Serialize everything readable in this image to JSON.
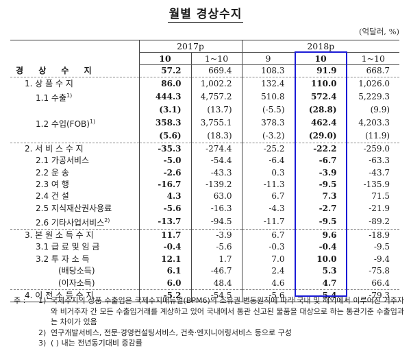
{
  "title": "월별 경상수지",
  "unit": "(억달러, %)",
  "header": {
    "years": [
      {
        "label": "2017p",
        "span": 2
      },
      {
        "label": "2018p",
        "span": 3
      }
    ],
    "months": [
      "10",
      "1~10",
      "9",
      "10",
      "1~10"
    ]
  },
  "highlight": {
    "column_index": 3,
    "color": "#1a1ad6"
  },
  "rows": [
    {
      "label": "경 상 수 지",
      "level": 0,
      "values": [
        "57.2",
        "669.4",
        "108.3",
        "91.9",
        "668.7"
      ]
    },
    {
      "label": "1. 상 품 수 지",
      "level": 1,
      "values": [
        "86.0",
        "1,002.2",
        "132.4",
        "110.0",
        "1,026.0"
      ]
    },
    {
      "label": "1.1  수출",
      "sup": "1)",
      "level": 2,
      "values": [
        "444.3",
        "4,757.2",
        "510.8",
        "572.4",
        "5,229.3"
      ]
    },
    {
      "label": "",
      "level": 2,
      "values": [
        "(3.1)",
        "(13.7)",
        "(-5.5)",
        "(28.8)",
        "(9.9)"
      ]
    },
    {
      "label": "1.2  수입(FOB)",
      "sup": "1)",
      "level": 2,
      "values": [
        "358.3",
        "3,755.1",
        "378.3",
        "462.4",
        "4,203.3"
      ]
    },
    {
      "label": "",
      "level": 2,
      "values": [
        "(5.6)",
        "(18.3)",
        "(-3.2)",
        "(29.0)",
        "(11.9)"
      ]
    },
    {
      "label": "2. 서 비 스 수 지",
      "level": 1,
      "values": [
        "-35.3",
        "-274.4",
        "-25.2",
        "-22.2",
        "-259.0"
      ]
    },
    {
      "label": "2.1  가공서비스",
      "level": 2,
      "values": [
        "-5.0",
        "-54.4",
        "-6.4",
        "-6.7",
        "-63.3"
      ]
    },
    {
      "label": "2.2  운          송",
      "level": 2,
      "values": [
        "-2.6",
        "-43.3",
        "0.3",
        "-3.9",
        "-43.7"
      ]
    },
    {
      "label": "2.3  여          행",
      "level": 2,
      "values": [
        "-16.7",
        "-139.2",
        "-11.3",
        "-9.5",
        "-135.9"
      ]
    },
    {
      "label": "2.4  건          설",
      "level": 2,
      "values": [
        "4.3",
        "63.0",
        "6.7",
        "7.3",
        "71.5"
      ]
    },
    {
      "label": "2.5  지식재산권사용료",
      "level": 2,
      "values": [
        "-5.6",
        "-16.3",
        "-4.3",
        "-2.7",
        "-21.9"
      ]
    },
    {
      "label": "2.6  기타사업서비스",
      "sup": "2)",
      "level": 2,
      "values": [
        "-13.7",
        "-94.5",
        "-11.7",
        "-9.5",
        "-89.2"
      ]
    },
    {
      "label": "3. 본 원 소 득 수 지",
      "level": 1,
      "values": [
        "11.7",
        "-3.9",
        "6.7",
        "9.6",
        "-18.9"
      ]
    },
    {
      "label": "3.1  급 료 및 임 금",
      "level": 2,
      "values": [
        "-0.4",
        "-5.6",
        "-0.3",
        "-0.4",
        "-9.5"
      ]
    },
    {
      "label": "3.2  투   자   소   득",
      "level": 2,
      "values": [
        "12.1",
        "1.7",
        "7.0",
        "10.0",
        "-9.4"
      ]
    },
    {
      "label": "(배당소득)",
      "level": 3,
      "values": [
        "6.1",
        "-46.7",
        "2.4",
        "5.3",
        "-75.8"
      ]
    },
    {
      "label": "(이자소득)",
      "level": 3,
      "values": [
        "6.0",
        "48.4",
        "4.6",
        "4.7",
        "66.4"
      ]
    },
    {
      "label": "4. 이 전 소 득 수 지",
      "level": 1,
      "values": [
        "-5.2",
        "-54.5",
        "-5.6",
        "-5.4",
        "-79.3"
      ]
    }
  ],
  "notes": {
    "prefix": "주 : ",
    "items": [
      {
        "num": "1)",
        "lines": [
          "국제수지의 상품 수출입은 국제수지매뉴얼(BPM6)의 소유권 변동원칙에 따라 국내 및 해외에서 이루어진 거주자와 비거주자 간 모든 수출입거래를 계상하고 있어 국내에서 통관 신고된 물품을 대상으로 하는 통관기준 수출입과는 차이가 있음"
        ]
      },
      {
        "num": "2)",
        "lines": [
          "연구개발서비스, 전문·경영컨설팅서비스, 건축·엔지니어링서비스 등으로 구성"
        ]
      },
      {
        "num": "3)",
        "lines": [
          "(  ) 내는 전년동기대비 증감률"
        ]
      }
    ]
  }
}
